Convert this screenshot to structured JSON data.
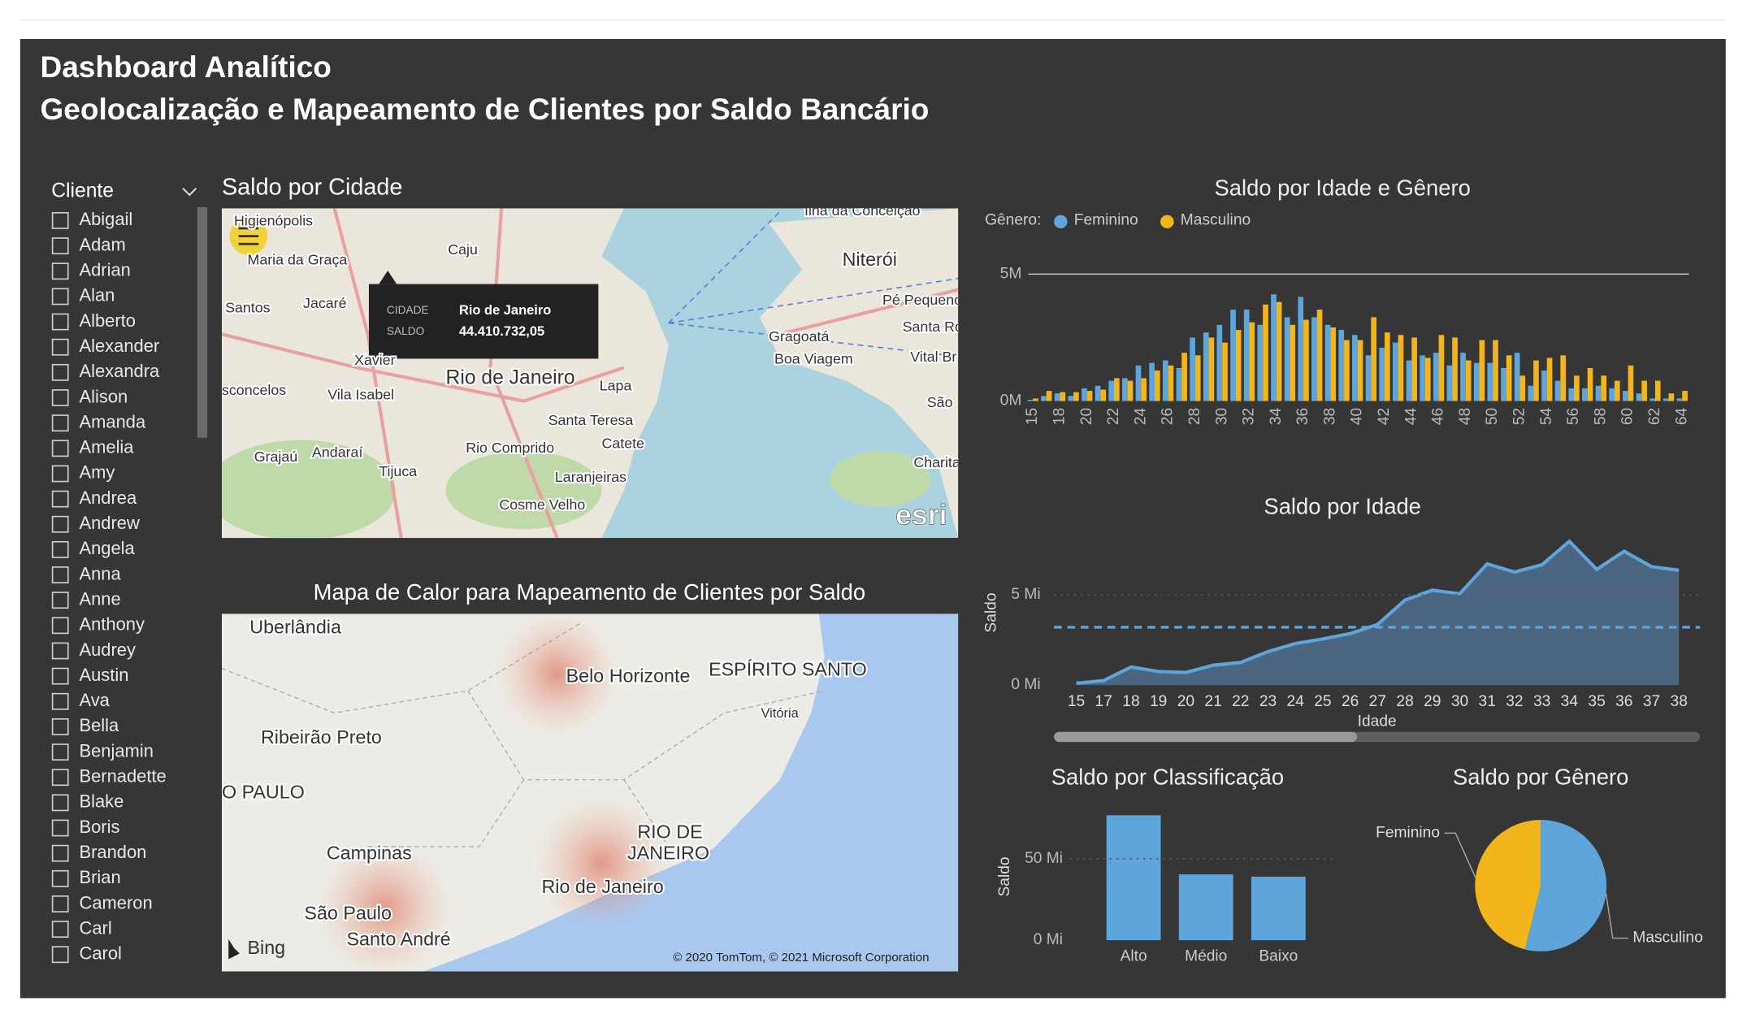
{
  "header": {
    "title": "Dashboard Analítico",
    "subtitle": "Geolocalização e Mapeamento de Clientes por Saldo Bancário"
  },
  "slicer": {
    "title": "Cliente",
    "items": [
      "Abigail",
      "Adam",
      "Adrian",
      "Alan",
      "Alberto",
      "Alexander",
      "Alexandra",
      "Alison",
      "Amanda",
      "Amelia",
      "Amy",
      "Andrea",
      "Andrew",
      "Angela",
      "Anna",
      "Anne",
      "Anthony",
      "Audrey",
      "Austin",
      "Ava",
      "Bella",
      "Benjamin",
      "Bernadette",
      "Blake",
      "Boris",
      "Brandon",
      "Brian",
      "Cameron",
      "Carl",
      "Carol"
    ]
  },
  "city_map": {
    "title": "Saldo por Cidade",
    "labels": [
      "Higienópolis",
      "Caju",
      "Ilha da Conceição",
      "Maria da Graça",
      "Niterói",
      "Santos",
      "Jacaré",
      "Pé Pequeno",
      "Xavier",
      "Gragoatá",
      "Boa Viagem",
      "Santa Ro",
      "Vital Br",
      "Rio de Janeiro",
      "Lapa",
      "sconcelos",
      "Vila Isabel",
      "Santa Teresa",
      "São",
      "Grajaú",
      "Andaraí",
      "Catete",
      "Rio Comprido",
      "Tijuca",
      "Laranjeiras",
      "Charita",
      "Cosme Velho"
    ],
    "tooltip": {
      "fields": [
        "CIDADE",
        "SALDO"
      ],
      "values": [
        "Rio de Janeiro",
        "44.410.732,05"
      ]
    },
    "attribution": "esri"
  },
  "heat_map": {
    "title": "Mapa de Calor para Mapeamento de Clientes por Saldo",
    "labels": [
      "Uberlândia",
      "Belo Horizonte",
      "ESPÍRITO SANTO",
      "Vitória",
      "Ribeirão Preto",
      "O PAULO",
      "RIO DE",
      "JANEIRO",
      "Campinas",
      "Rio de Janeiro",
      "São Paulo",
      "Santo André"
    ],
    "logo": "Bing",
    "attribution": "© 2020 TomTom, © 2021 Microsoft Corporation"
  },
  "chart_data": [
    {
      "type": "bar",
      "title": "Saldo por Idade e Gênero",
      "legend_title": "Gênero:",
      "categories": [
        15,
        null,
        18,
        null,
        20,
        null,
        22,
        null,
        24,
        null,
        26,
        null,
        28,
        null,
        30,
        null,
        32,
        null,
        34,
        null,
        36,
        null,
        38,
        null,
        40,
        null,
        42,
        null,
        44,
        null,
        46,
        null,
        48,
        null,
        50,
        null,
        52,
        null,
        54,
        null,
        56,
        null,
        58,
        null,
        60,
        null,
        62,
        null,
        64
      ],
      "series": [
        {
          "name": "Feminino",
          "color": "#5DA5DA",
          "values": [
            50000,
            200000,
            300000,
            200000,
            500000,
            600000,
            800000,
            900000,
            1400000,
            1500000,
            1600000,
            1300000,
            2500000,
            2700000,
            3000000,
            3600000,
            3600000,
            3000000,
            4200000,
            3300000,
            4100000,
            3300000,
            3000000,
            2800000,
            2600000,
            1800000,
            2100000,
            2300000,
            1600000,
            1800000,
            1900000,
            1400000,
            1900000,
            1500000,
            1500000,
            1300000,
            1900000,
            600000,
            1200000,
            800000,
            500000,
            500000,
            600000,
            500000,
            400000,
            300000,
            100000,
            100000,
            100000
          ]
        },
        {
          "name": "Masculino",
          "color": "#F2B51B",
          "values": [
            100000,
            400000,
            350000,
            350000,
            400000,
            450000,
            900000,
            800000,
            900000,
            1200000,
            1400000,
            1900000,
            1800000,
            2500000,
            2300000,
            2800000,
            3100000,
            3800000,
            3900000,
            3000000,
            3200000,
            3600000,
            2900000,
            2400000,
            2400000,
            3300000,
            2700000,
            2600000,
            2500000,
            1700000,
            2600000,
            2500000,
            1600000,
            2400000,
            2400000,
            1800000,
            1000000,
            1600000,
            1700000,
            1800000,
            1000000,
            1300000,
            1000000,
            800000,
            1400000,
            800000,
            800000,
            300000,
            400000
          ]
        }
      ],
      "ylim": [
        0,
        5000000
      ],
      "yticks": [
        {
          "value": 0,
          "label": "0M"
        },
        {
          "value": 5000000,
          "label": "5M"
        }
      ],
      "grid": true
    },
    {
      "type": "area",
      "title": "Saldo por Idade",
      "xlabel": "Idade",
      "ylabel": "Saldo",
      "color": "#5DA5DA",
      "categories": [
        15,
        17,
        18,
        19,
        20,
        21,
        22,
        23,
        24,
        25,
        26,
        27,
        28,
        29,
        30,
        31,
        32,
        33,
        34,
        35,
        36,
        37,
        38
      ],
      "values": [
        100000,
        250000,
        1000000,
        750000,
        700000,
        1100000,
        1250000,
        1850000,
        2300000,
        2550000,
        2850000,
        3350000,
        4700000,
        5250000,
        5050000,
        6700000,
        6250000,
        6650000,
        7950000,
        6400000,
        7400000,
        6550000,
        6350000
      ],
      "reference_line": 3200000,
      "ylim": [
        0,
        8500000
      ],
      "yticks": [
        {
          "value": 0,
          "label": "0 Mi"
        },
        {
          "value": 5000000,
          "label": "5 Mi"
        }
      ],
      "grid": true
    },
    {
      "type": "bar",
      "title": "Saldo por Classificação",
      "ylabel": "Saldo",
      "color": "#5DA5DA",
      "categories": [
        "Alto",
        "Médio",
        "Baixo"
      ],
      "values": [
        76700000,
        40400000,
        39000000
      ],
      "ylim": [
        0,
        80000000
      ],
      "yticks": [
        {
          "value": 0,
          "label": "0 Mi"
        },
        {
          "value": 50000000,
          "label": "50 Mi"
        }
      ],
      "grid": true
    },
    {
      "type": "pie",
      "title": "Saldo por Gênero",
      "categories": [
        "Feminino",
        "Masculino"
      ],
      "values": [
        72000000,
        84000000
      ],
      "colors": [
        "#F2B51B",
        "#5DA5DA"
      ]
    }
  ]
}
